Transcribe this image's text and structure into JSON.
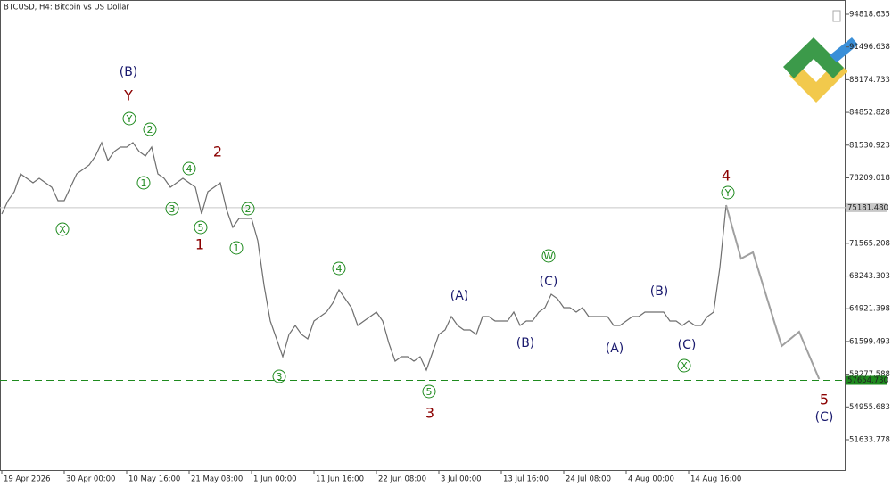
{
  "chart_data": {
    "type": "line",
    "title": "BTCUSD, H4:  Bitcoin vs US Dollar",
    "xlim": [
      -0.286,
      135.14
    ],
    "xticks": [
      {
        "value": 0,
        "label": "19 Apr 2026"
      },
      {
        "value": 10,
        "label": "30 Apr 00:00"
      },
      {
        "value": 20,
        "label": "10 May 16:00"
      },
      {
        "value": 30,
        "label": "21 May 08:00"
      },
      {
        "value": 40,
        "label": "1 Jun 00:00"
      },
      {
        "value": 50,
        "label": "11 Jun 16:00"
      },
      {
        "value": 60,
        "label": "22 Jun 08:00"
      },
      {
        "value": 70,
        "label": "3 Jul 00:00"
      },
      {
        "value": 80,
        "label": "13 Jul 16:00"
      },
      {
        "value": 90,
        "label": "24 Jul 08:00"
      },
      {
        "value": 100,
        "label": "4 Aug 00:00"
      },
      {
        "value": 110,
        "label": "14 Aug 16:00"
      }
    ],
    "ylim": [
      48465,
      96267
    ],
    "yticks": [
      94818.635,
      91496.638,
      88174.733,
      84852.828,
      81530.923,
      78209.018,
      71565.208,
      68243.303,
      64921.398,
      61599.493,
      58277.588,
      54955.683,
      51633.778
    ],
    "levels": [
      {
        "value": 75181.48,
        "label": "75181.480",
        "color": "#c8c8c8",
        "dashed": false
      },
      {
        "value": 57654.73,
        "label": "57654.730",
        "color": "#1e8a1e",
        "dashed": true
      }
    ],
    "series": [
      {
        "color": "#6e6e6e",
        "values": [
          74540,
          75898,
          76803,
          78614,
          78161,
          77708,
          78161,
          77708,
          77256,
          75898,
          75898,
          77256,
          78614,
          79066,
          79519,
          80424,
          81782,
          79972,
          80877,
          81330,
          81330,
          81782,
          80877,
          80424,
          81330,
          78614,
          78161,
          77256,
          77708,
          78161,
          77708,
          77256,
          74540,
          76803,
          77256,
          77708,
          74992,
          73182,
          74087,
          74087,
          74087,
          71824,
          67297,
          63676,
          61866,
          60055,
          62318,
          63224,
          62318,
          61866,
          63676,
          64129,
          64581,
          65487,
          66845,
          65939,
          65034,
          63224,
          63676,
          64129,
          64581,
          63676,
          61413,
          59602,
          60055,
          60055,
          59602,
          60055,
          58697,
          60508,
          62318,
          62771,
          64129,
          63224,
          62771,
          62771,
          62318,
          64129,
          64129,
          63676,
          63676,
          63676,
          64581,
          63224,
          63676,
          63676,
          64581,
          65034,
          66392,
          65939,
          65034,
          65034,
          64581,
          65034,
          64129,
          64129,
          64129,
          64129,
          63224,
          63224,
          63676,
          64129,
          64129,
          64581,
          64581,
          64581,
          64581,
          63676,
          63676,
          63224,
          63676,
          63224,
          63224,
          64129,
          64581,
          69108,
          75445
        ]
      },
      {
        "color": "#a0a0a0",
        "x": [
          116,
          118.4,
          120.3,
          124.9,
          127.7,
          130.9
        ],
        "values": [
          75445,
          70013,
          70647,
          61141,
          62590,
          57792
        ]
      }
    ],
    "annotations": [
      {
        "text": "(B)",
        "style": "wave"
      },
      {
        "text": "Y",
        "style": "major"
      },
      {
        "text": "Y",
        "style": "circled"
      },
      {
        "text": "2",
        "style": "circled"
      },
      {
        "text": "1",
        "style": "circled"
      },
      {
        "text": "4",
        "style": "circled"
      },
      {
        "text": "3",
        "style": "circled"
      },
      {
        "text": "5",
        "style": "circled"
      },
      {
        "text": "X",
        "style": "circled"
      },
      {
        "text": "2",
        "style": "major"
      },
      {
        "text": "1",
        "style": "major"
      },
      {
        "text": "2",
        "style": "circled"
      },
      {
        "text": "1",
        "style": "circled"
      },
      {
        "text": "4",
        "style": "circled"
      },
      {
        "text": "3",
        "style": "circled"
      },
      {
        "text": "5",
        "style": "circled"
      },
      {
        "text": "3",
        "style": "major"
      },
      {
        "text": "(A)",
        "style": "wave"
      },
      {
        "text": "W",
        "style": "circled"
      },
      {
        "text": "(C)",
        "style": "wave"
      },
      {
        "text": "(B)",
        "style": "wave"
      },
      {
        "text": "(A)",
        "style": "wave"
      },
      {
        "text": "(B)",
        "style": "wave"
      },
      {
        "text": "(C)",
        "style": "wave"
      },
      {
        "text": "X",
        "style": "circled"
      },
      {
        "text": "4",
        "style": "major"
      },
      {
        "text": "Y",
        "style": "circled"
      },
      {
        "text": "5",
        "style": "major"
      },
      {
        "text": "(C)",
        "style": "wave"
      }
    ]
  }
}
